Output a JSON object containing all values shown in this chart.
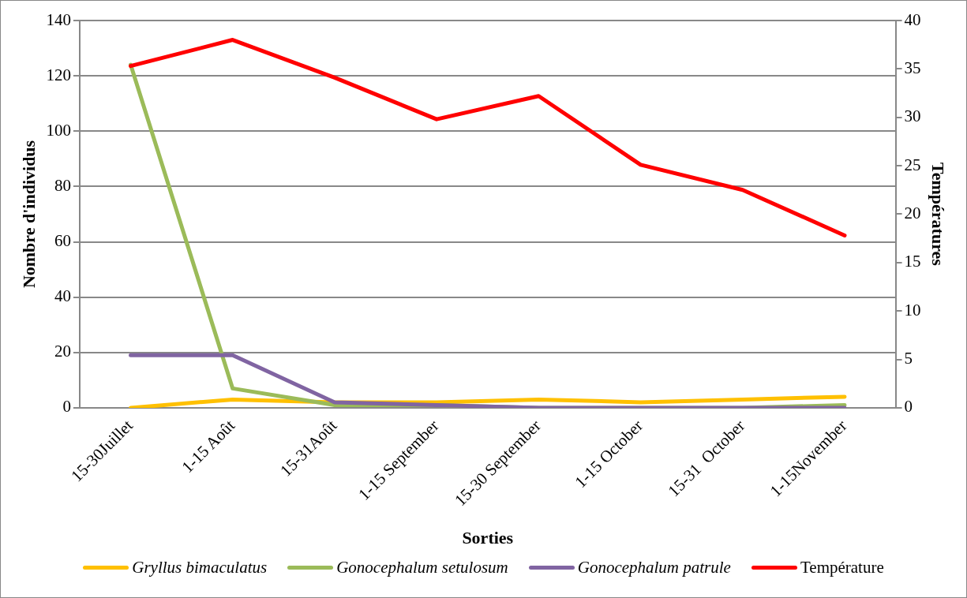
{
  "chart_data": {
    "type": "line",
    "xlabel": "Sorties",
    "ylabel": "Nombre d'individus",
    "y2label": "Températures",
    "categories": [
      "15-30Juillet",
      "1-15 Août",
      "15-31Août",
      "1-15 September",
      "15-30 September",
      "1-15 October",
      "15-31  October",
      "1-15November"
    ],
    "series": [
      {
        "name": "Gryllus bimaculatus",
        "color": "#ffc000",
        "values": [
          0,
          3,
          2,
          2,
          3,
          2,
          3,
          4
        ]
      },
      {
        "name": "Gonocephalum setulosum",
        "color": "#9bbb59",
        "values": [
          124,
          7,
          1,
          1,
          0,
          0,
          0,
          1
        ]
      },
      {
        "name": "Gonocephalum patrule",
        "color": "#8064a2",
        "values": [
          19,
          19,
          2,
          1,
          0,
          0,
          0,
          0
        ]
      },
      {
        "name": "Température",
        "color": "#ff0000",
        "axis": "y2",
        "values": [
          35.3,
          38.0,
          34.1,
          29.8,
          32.2,
          25.1,
          22.5,
          17.8
        ]
      }
    ],
    "ylim": [
      0,
      140
    ],
    "yticks": [
      0,
      20,
      40,
      60,
      80,
      100,
      120,
      140
    ],
    "y2lim": [
      0,
      40
    ],
    "y2ticks": [
      0,
      5,
      10,
      15,
      20,
      25,
      30,
      35,
      40
    ],
    "grid": "y",
    "legend": "bottom",
    "marker": "none",
    "line_style": "solid"
  }
}
